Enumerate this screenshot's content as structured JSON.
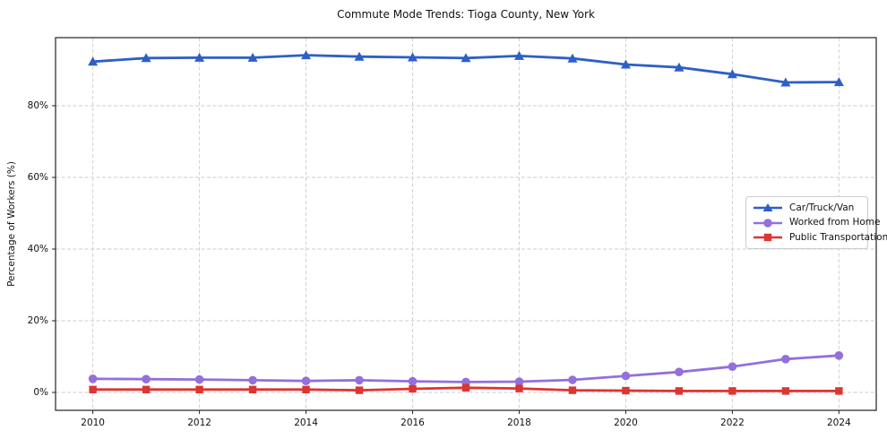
{
  "chart_data": {
    "type": "line",
    "title": "Commute Mode Trends: Tioga County, New York",
    "xlabel": "",
    "ylabel": "Percentage of Workers (%)",
    "x": [
      2010,
      2011,
      2012,
      2013,
      2014,
      2015,
      2016,
      2017,
      2018,
      2019,
      2020,
      2021,
      2022,
      2023,
      2024
    ],
    "series": [
      {
        "name": "Car/Truck/Van",
        "marker": "triangle",
        "color": "#2d5fc7",
        "values": [
          92.3,
          93.3,
          93.4,
          93.4,
          94.1,
          93.7,
          93.5,
          93.3,
          93.9,
          93.2,
          91.5,
          90.7,
          88.8,
          86.5,
          86.6
        ]
      },
      {
        "name": "Worked from Home",
        "marker": "circle",
        "color": "#9370db",
        "values": [
          3.8,
          3.7,
          3.6,
          3.4,
          3.2,
          3.4,
          3.1,
          2.9,
          3.0,
          3.5,
          4.6,
          5.7,
          7.2,
          9.3,
          10.3
        ]
      },
      {
        "name": "Public Transportation",
        "marker": "square",
        "color": "#dc3532",
        "values": [
          0.8,
          0.8,
          0.8,
          0.8,
          0.8,
          0.6,
          1.0,
          1.3,
          1.1,
          0.6,
          0.5,
          0.4,
          0.4,
          0.4,
          0.4
        ]
      }
    ],
    "xticks": [
      2010,
      2012,
      2014,
      2016,
      2018,
      2020,
      2022,
      2024
    ],
    "yticks": [
      0,
      20,
      40,
      60,
      80
    ],
    "ytick_labels": [
      "0%",
      "20%",
      "40%",
      "60%",
      "80%"
    ],
    "xlim": [
      2009.3,
      2024.7
    ],
    "ylim": [
      -5,
      99
    ],
    "grid": true,
    "grid_style": "dashed",
    "legend_position": "center right"
  },
  "colors": {
    "grid": "#cccccc",
    "spine": "#222222",
    "text": "#111111",
    "background": "#ffffff"
  }
}
